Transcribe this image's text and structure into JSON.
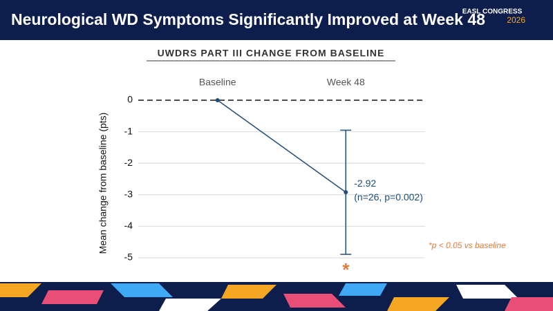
{
  "logo": {
    "name": "EASL CONGRESS",
    "year": "2026"
  },
  "chart_data": {
    "type": "line",
    "title": "Neurological WD Symptoms Significantly Improved at Week 48",
    "subtitle": "UWDRS PART III CHANGE FROM BASELINE",
    "y_label": "Mean change from baseline (pts)",
    "categories": [
      "Baseline",
      "Week 48"
    ],
    "series": [
      {
        "name": "UWDRS Part III",
        "color": "#1f4e79",
        "values": [
          0,
          -2.92
        ],
        "errors": [
          null,
          1.97
        ]
      }
    ],
    "annotations": [
      "(n=26, p=0.002)",
      "*",
      "*p < 0.05 vs baseline"
    ],
    "ylim": [
      -5,
      0
    ],
    "yticks": [
      0,
      -1,
      -2,
      -3,
      -4,
      -5
    ],
    "grid": true
  }
}
